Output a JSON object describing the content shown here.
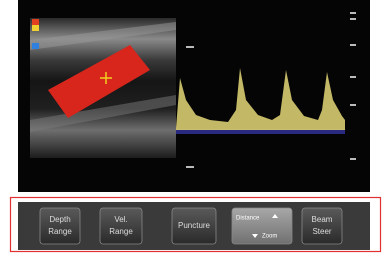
{
  "buttons": [
    {
      "lines": [
        "Depth",
        "Range"
      ]
    },
    {
      "lines": [
        "Vel.",
        "Range"
      ]
    },
    {
      "lines": [
        "Puncture"
      ]
    },
    {
      "lines": [
        "Distance",
        "Zoom"
      ]
    },
    {
      "lines": [
        "Beam",
        "Steer"
      ]
    }
  ]
}
